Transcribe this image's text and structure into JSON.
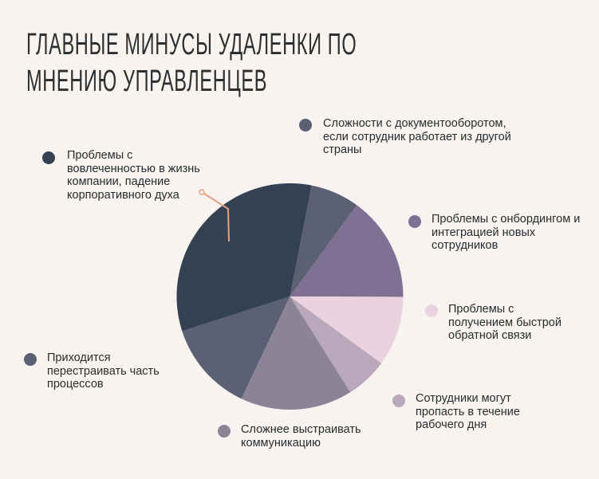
{
  "title": {
    "line1": "ГЛАВНЫЕ МИНУСЫ УДАЛЕНКИ ПО",
    "line2": "МНЕНИЮ УПРАВЛЕНЦЕВ"
  },
  "chart_data": {
    "type": "pie",
    "title": "ГЛАВНЫЕ МИНУСЫ УДАЛЕНКИ ПО МНЕНИЮ УПРАВЛЕНЦЕВ",
    "start_angle_deg": 11,
    "direction": "clockwise",
    "slices": [
      {
        "label": "Сложности с документооборотом,\nесли сотрудник работает из другой\nстраны",
        "value": 7,
        "color": "#5b6073"
      },
      {
        "label": "Проблемы с онбордингом и\nинтеграцией новых\nсотрудников",
        "value": 15,
        "color": "#7e7194"
      },
      {
        "label": "Проблемы с\nполучением быстрой\nобратной связи",
        "value": 10,
        "color": "#ead3df"
      },
      {
        "label": "Сотрудники могут\nпропасть в течение\nрабочего дня",
        "value": 6,
        "color": "#b9a8bb"
      },
      {
        "label": "Сложнее выстраивать\nкоммуникацию",
        "value": 16,
        "color": "#8a8496"
      },
      {
        "label": "Приходится\nперестраивать часть\nпроцессов",
        "value": 13,
        "color": "#5b6073"
      },
      {
        "label": "Проблемы с\nвовлеченностью в жизнь\nкомпании, падение\nкорпоративного духа",
        "value": 33,
        "color": "#334150"
      }
    ],
    "legend": "labels-around-pie",
    "callout_color": "#e8a07e"
  }
}
